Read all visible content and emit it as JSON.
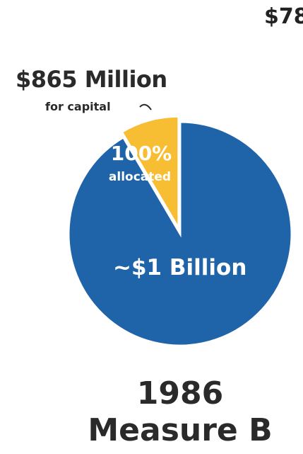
{
  "cutoff_text": "$78",
  "chart_data": {
    "type": "pie",
    "title": "1986",
    "subtitle": "Measure B",
    "slices": [
      {
        "label": "$865 Million",
        "sublabel": "for capital",
        "inner_label": "100%",
        "inner_sublabel": "allocated",
        "value": 8.5,
        "color": "#F7BE34"
      },
      {
        "inner_label": "~$1 Billion",
        "value": 91.5,
        "color": "#1F63A9"
      }
    ]
  }
}
